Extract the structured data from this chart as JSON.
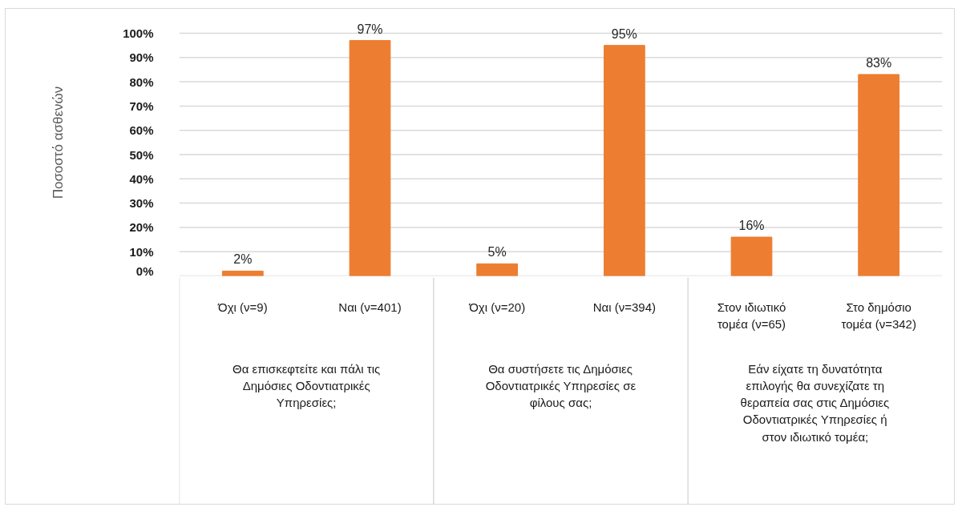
{
  "chart_data": {
    "type": "bar",
    "ylabel": "Ποσοστό ασθενών",
    "categories": [
      "Όχι (ν=9)",
      "Ναι (ν=401)",
      "Όχι (ν=20)",
      "Ναι (ν=394)",
      "Στον ιδιωτικό τομέα (ν=65)",
      "Στο δημόσιο τομέα (ν=342)"
    ],
    "values": [
      2,
      97,
      5,
      95,
      16,
      83
    ],
    "value_labels": [
      "2%",
      "97%",
      "5%",
      "95%",
      "16%",
      "83%"
    ],
    "color": "#ed7d31",
    "ylim": [
      0,
      100
    ],
    "yticks": [
      {
        "value": 0,
        "label": "0%"
      },
      {
        "value": 10,
        "label": "10%"
      },
      {
        "value": 20,
        "label": "20%"
      },
      {
        "value": 30,
        "label": "30%"
      },
      {
        "value": 40,
        "label": "40%"
      },
      {
        "value": 50,
        "label": "50%"
      },
      {
        "value": 60,
        "label": "60%"
      },
      {
        "value": 70,
        "label": "70%"
      },
      {
        "value": 80,
        "label": "80%"
      },
      {
        "value": 90,
        "label": "90%"
      },
      {
        "value": 100,
        "label": "100%"
      }
    ],
    "grid": "y",
    "annotations": [
      "Θα επισκεφτείτε και πάλι τις Δημόσιες Οδοντιατρικές Υπηρεσίες;",
      "Θα συστήσετε τις Δημόσιες Οδοντιατρικές Υπηρεσίες σε φίλους σας;",
      "Εάν είχατε τη δυνατότητα επιλογής θα συνεχίζατε τη θεραπεία σας στις Δημόσιες Οδοντιατρικές Υπηρεσίες ή στον ιδιωτικό τομέα;"
    ]
  }
}
